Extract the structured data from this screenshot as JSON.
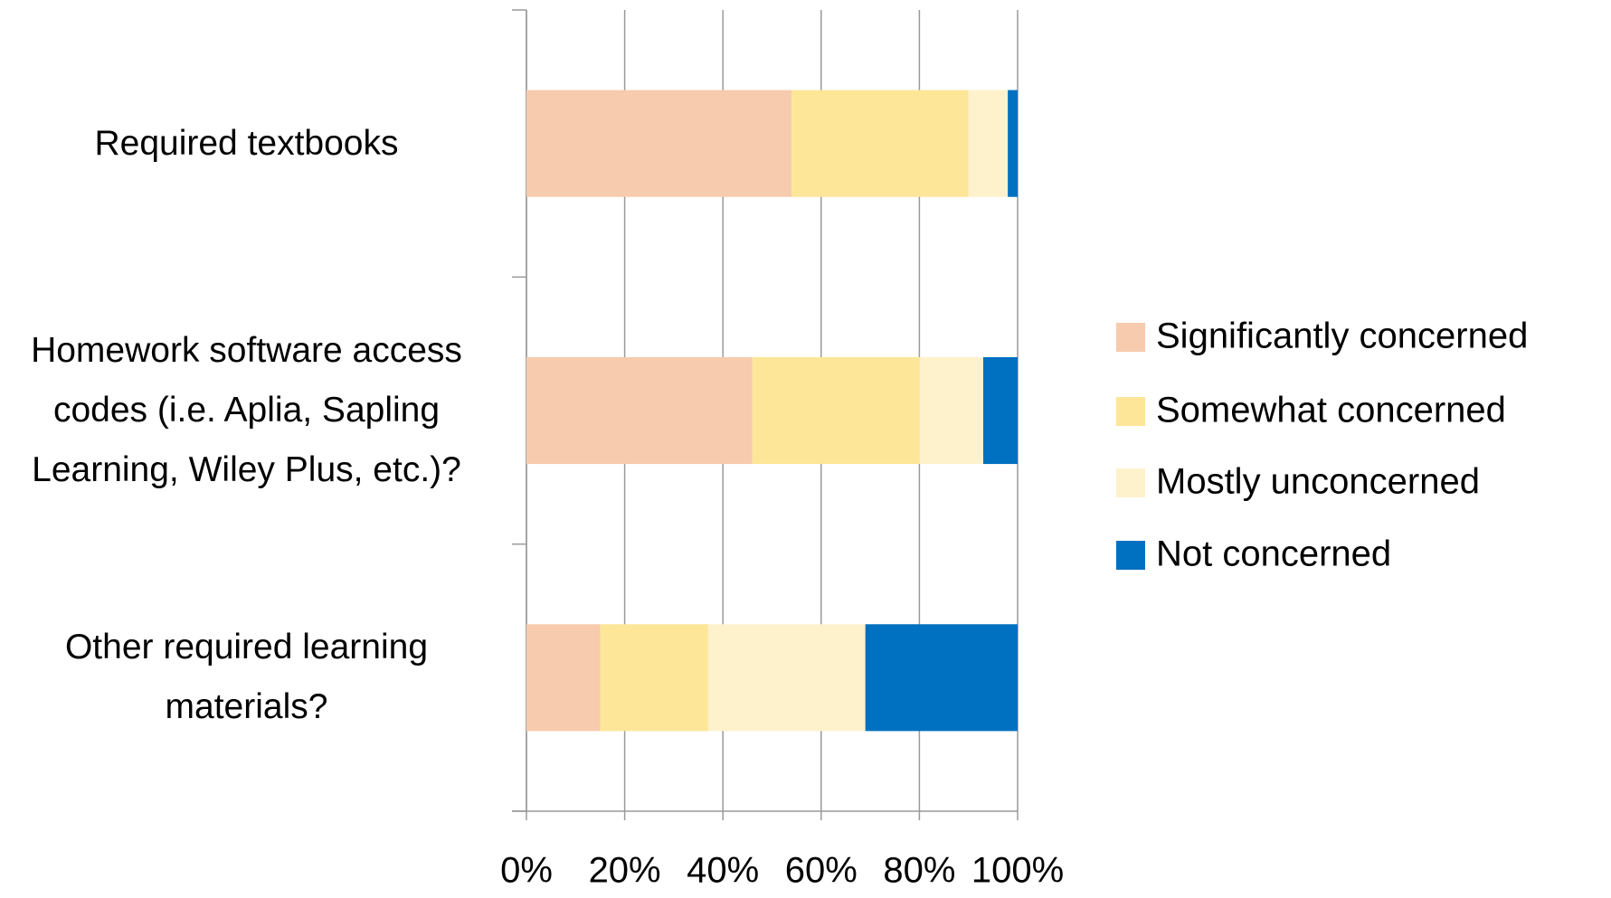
{
  "chart_data": {
    "type": "stacked_barh",
    "categories": [
      "Required textbooks",
      "Homework software access codes (i.e. Aplia, Sapling Learning, Wiley Plus, etc.)?",
      "Other required learning materials?"
    ],
    "series": [
      {
        "name": "Significantly concerned",
        "color": "#f7cbad",
        "values": [
          54,
          46,
          15
        ]
      },
      {
        "name": "Somewhat concerned",
        "color": "#fde697",
        "values": [
          36,
          34,
          22
        ]
      },
      {
        "name": "Mostly unconcerned",
        "color": "#fef2cc",
        "values": [
          8,
          13,
          32
        ]
      },
      {
        "name": "Not concerned",
        "color": "#0070c0",
        "values": [
          2,
          7,
          31
        ]
      }
    ],
    "xlim": [
      0,
      100
    ],
    "xticks": [
      {
        "value": 0,
        "label": "0%"
      },
      {
        "value": 20,
        "label": "20%"
      },
      {
        "value": 40,
        "label": "40%"
      },
      {
        "value": 60,
        "label": "60%"
      },
      {
        "value": 80,
        "label": "80%"
      },
      {
        "value": 100,
        "label": "100%"
      }
    ],
    "grid": true,
    "legend": "right"
  }
}
